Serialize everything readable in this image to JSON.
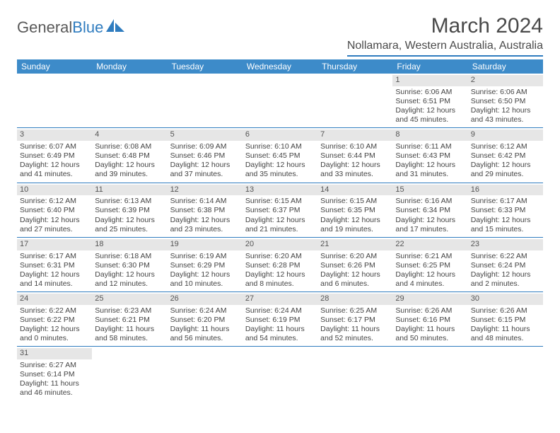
{
  "logo": {
    "text1": "General",
    "text2": "Blue"
  },
  "title": "March 2024",
  "location": "Nollamara, Western Australia, Australia",
  "colors": {
    "header_bg": "#3d8bc9",
    "accent": "#2f7cbf",
    "daynum_bg": "#e6e6e6",
    "text": "#444444",
    "logo_gray": "#5a5a5a",
    "logo_blue": "#2f7cbf"
  },
  "day_names": [
    "Sunday",
    "Monday",
    "Tuesday",
    "Wednesday",
    "Thursday",
    "Friday",
    "Saturday"
  ],
  "weeks": [
    [
      null,
      null,
      null,
      null,
      null,
      {
        "n": "1",
        "sunrise": "Sunrise: 6:06 AM",
        "sunset": "Sunset: 6:51 PM",
        "daylight": "Daylight: 12 hours and 45 minutes."
      },
      {
        "n": "2",
        "sunrise": "Sunrise: 6:06 AM",
        "sunset": "Sunset: 6:50 PM",
        "daylight": "Daylight: 12 hours and 43 minutes."
      }
    ],
    [
      {
        "n": "3",
        "sunrise": "Sunrise: 6:07 AM",
        "sunset": "Sunset: 6:49 PM",
        "daylight": "Daylight: 12 hours and 41 minutes."
      },
      {
        "n": "4",
        "sunrise": "Sunrise: 6:08 AM",
        "sunset": "Sunset: 6:48 PM",
        "daylight": "Daylight: 12 hours and 39 minutes."
      },
      {
        "n": "5",
        "sunrise": "Sunrise: 6:09 AM",
        "sunset": "Sunset: 6:46 PM",
        "daylight": "Daylight: 12 hours and 37 minutes."
      },
      {
        "n": "6",
        "sunrise": "Sunrise: 6:10 AM",
        "sunset": "Sunset: 6:45 PM",
        "daylight": "Daylight: 12 hours and 35 minutes."
      },
      {
        "n": "7",
        "sunrise": "Sunrise: 6:10 AM",
        "sunset": "Sunset: 6:44 PM",
        "daylight": "Daylight: 12 hours and 33 minutes."
      },
      {
        "n": "8",
        "sunrise": "Sunrise: 6:11 AM",
        "sunset": "Sunset: 6:43 PM",
        "daylight": "Daylight: 12 hours and 31 minutes."
      },
      {
        "n": "9",
        "sunrise": "Sunrise: 6:12 AM",
        "sunset": "Sunset: 6:42 PM",
        "daylight": "Daylight: 12 hours and 29 minutes."
      }
    ],
    [
      {
        "n": "10",
        "sunrise": "Sunrise: 6:12 AM",
        "sunset": "Sunset: 6:40 PM",
        "daylight": "Daylight: 12 hours and 27 minutes."
      },
      {
        "n": "11",
        "sunrise": "Sunrise: 6:13 AM",
        "sunset": "Sunset: 6:39 PM",
        "daylight": "Daylight: 12 hours and 25 minutes."
      },
      {
        "n": "12",
        "sunrise": "Sunrise: 6:14 AM",
        "sunset": "Sunset: 6:38 PM",
        "daylight": "Daylight: 12 hours and 23 minutes."
      },
      {
        "n": "13",
        "sunrise": "Sunrise: 6:15 AM",
        "sunset": "Sunset: 6:37 PM",
        "daylight": "Daylight: 12 hours and 21 minutes."
      },
      {
        "n": "14",
        "sunrise": "Sunrise: 6:15 AM",
        "sunset": "Sunset: 6:35 PM",
        "daylight": "Daylight: 12 hours and 19 minutes."
      },
      {
        "n": "15",
        "sunrise": "Sunrise: 6:16 AM",
        "sunset": "Sunset: 6:34 PM",
        "daylight": "Daylight: 12 hours and 17 minutes."
      },
      {
        "n": "16",
        "sunrise": "Sunrise: 6:17 AM",
        "sunset": "Sunset: 6:33 PM",
        "daylight": "Daylight: 12 hours and 15 minutes."
      }
    ],
    [
      {
        "n": "17",
        "sunrise": "Sunrise: 6:17 AM",
        "sunset": "Sunset: 6:31 PM",
        "daylight": "Daylight: 12 hours and 14 minutes."
      },
      {
        "n": "18",
        "sunrise": "Sunrise: 6:18 AM",
        "sunset": "Sunset: 6:30 PM",
        "daylight": "Daylight: 12 hours and 12 minutes."
      },
      {
        "n": "19",
        "sunrise": "Sunrise: 6:19 AM",
        "sunset": "Sunset: 6:29 PM",
        "daylight": "Daylight: 12 hours and 10 minutes."
      },
      {
        "n": "20",
        "sunrise": "Sunrise: 6:20 AM",
        "sunset": "Sunset: 6:28 PM",
        "daylight": "Daylight: 12 hours and 8 minutes."
      },
      {
        "n": "21",
        "sunrise": "Sunrise: 6:20 AM",
        "sunset": "Sunset: 6:26 PM",
        "daylight": "Daylight: 12 hours and 6 minutes."
      },
      {
        "n": "22",
        "sunrise": "Sunrise: 6:21 AM",
        "sunset": "Sunset: 6:25 PM",
        "daylight": "Daylight: 12 hours and 4 minutes."
      },
      {
        "n": "23",
        "sunrise": "Sunrise: 6:22 AM",
        "sunset": "Sunset: 6:24 PM",
        "daylight": "Daylight: 12 hours and 2 minutes."
      }
    ],
    [
      {
        "n": "24",
        "sunrise": "Sunrise: 6:22 AM",
        "sunset": "Sunset: 6:22 PM",
        "daylight": "Daylight: 12 hours and 0 minutes."
      },
      {
        "n": "25",
        "sunrise": "Sunrise: 6:23 AM",
        "sunset": "Sunset: 6:21 PM",
        "daylight": "Daylight: 11 hours and 58 minutes."
      },
      {
        "n": "26",
        "sunrise": "Sunrise: 6:24 AM",
        "sunset": "Sunset: 6:20 PM",
        "daylight": "Daylight: 11 hours and 56 minutes."
      },
      {
        "n": "27",
        "sunrise": "Sunrise: 6:24 AM",
        "sunset": "Sunset: 6:19 PM",
        "daylight": "Daylight: 11 hours and 54 minutes."
      },
      {
        "n": "28",
        "sunrise": "Sunrise: 6:25 AM",
        "sunset": "Sunset: 6:17 PM",
        "daylight": "Daylight: 11 hours and 52 minutes."
      },
      {
        "n": "29",
        "sunrise": "Sunrise: 6:26 AM",
        "sunset": "Sunset: 6:16 PM",
        "daylight": "Daylight: 11 hours and 50 minutes."
      },
      {
        "n": "30",
        "sunrise": "Sunrise: 6:26 AM",
        "sunset": "Sunset: 6:15 PM",
        "daylight": "Daylight: 11 hours and 48 minutes."
      }
    ],
    [
      {
        "n": "31",
        "sunrise": "Sunrise: 6:27 AM",
        "sunset": "Sunset: 6:14 PM",
        "daylight": "Daylight: 11 hours and 46 minutes."
      },
      null,
      null,
      null,
      null,
      null,
      null
    ]
  ]
}
